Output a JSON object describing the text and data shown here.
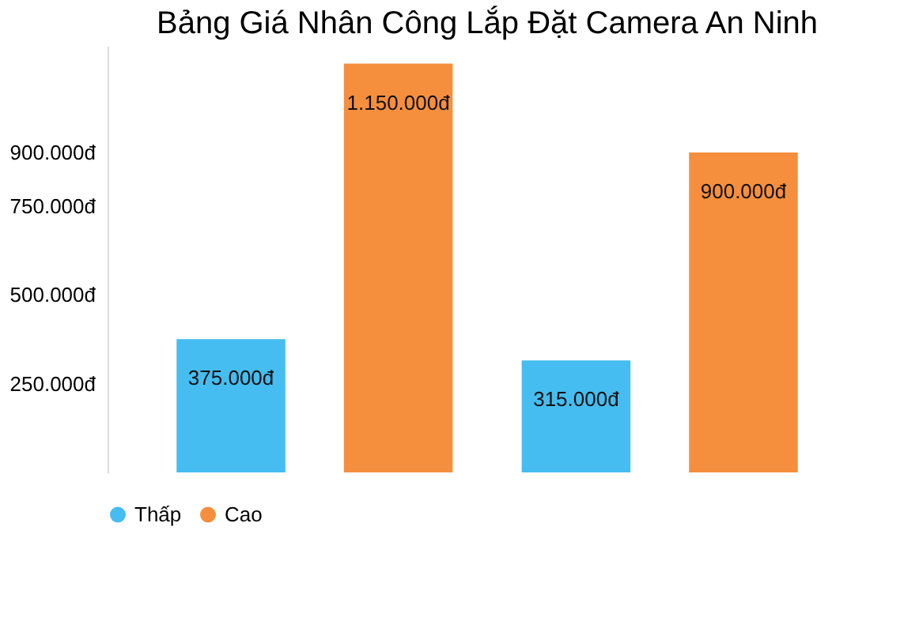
{
  "chart_data": {
    "type": "bar",
    "title": "Bảng Giá Nhân Công Lắp Đặt Camera An Ninh",
    "categories": [
      null,
      null
    ],
    "series": [
      {
        "name": "Thấp",
        "color": "#45bdf0",
        "values": [
          375000,
          315000
        ],
        "value_labels": [
          "375.000đ",
          "315.000đ"
        ]
      },
      {
        "name": "Cao",
        "color": "#f58f3e",
        "values": [
          1150000,
          900000
        ],
        "value_labels": [
          "1.150.000đ",
          "900.000đ"
        ]
      }
    ],
    "ylim": [
      0,
      1200000
    ],
    "yticks": [
      {
        "value": 250000,
        "label": "250.000đ"
      },
      {
        "value": 500000,
        "label": "500.000đ"
      },
      {
        "value": 750000,
        "label": "750.000đ"
      },
      {
        "value": 900000,
        "label": "900.000đ"
      }
    ],
    "grid": false,
    "legend": "bottom"
  }
}
